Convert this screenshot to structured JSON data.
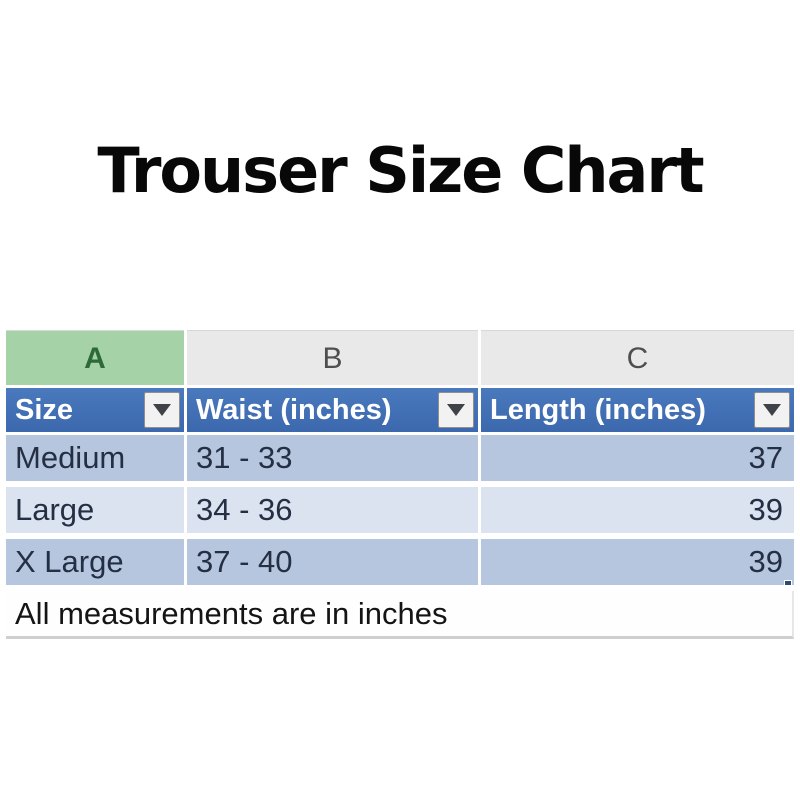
{
  "title": "Trouser Size Chart",
  "table": {
    "column_letters": [
      "A",
      "B",
      "C"
    ],
    "headers": [
      {
        "label": "Size"
      },
      {
        "label": "Waist (inches)"
      },
      {
        "label": "Length (inches)"
      }
    ],
    "rows": [
      {
        "size": "Medium",
        "waist": "31 - 33",
        "length": "37"
      },
      {
        "size": "Large",
        "waist": "34 - 36",
        "length": "39"
      },
      {
        "size": "X Large",
        "waist": "37 - 40",
        "length": "39"
      }
    ],
    "footer_note": "All measurements are in inches"
  },
  "colors": {
    "header_fill": "#3e6eb5",
    "header_text": "#ffffff",
    "selected_column_fill": "#a6d2a8",
    "selected_column_text": "#2c6b38",
    "column_strip_fill": "#e9e9e9",
    "band_odd": "#b6c6df",
    "band_even": "#dce3f0",
    "data_text": "#242f44",
    "title_text": "#080808",
    "fill_handle": "#2c4a74"
  }
}
